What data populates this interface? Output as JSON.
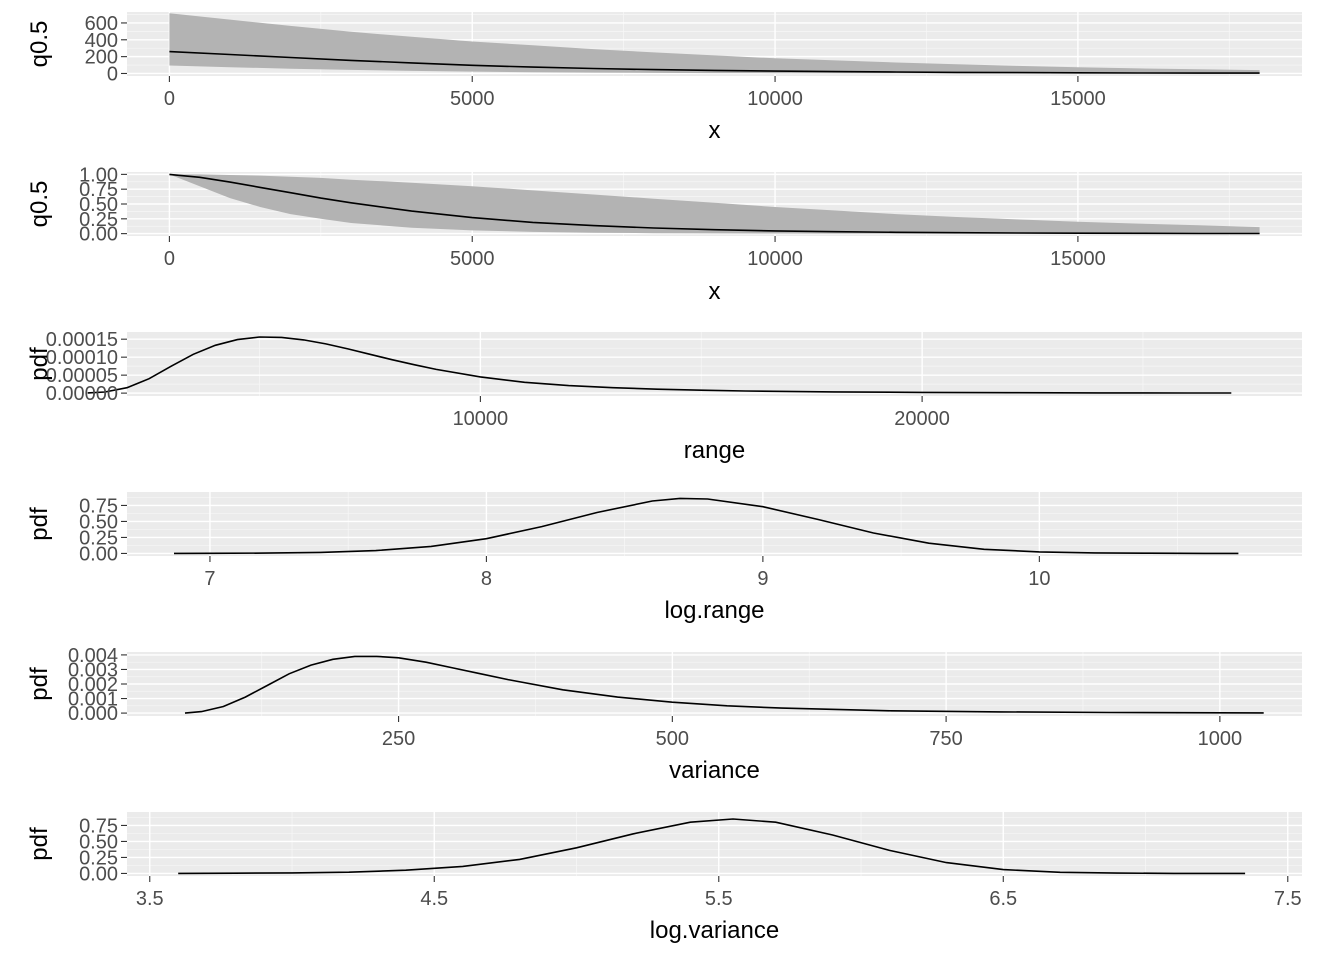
{
  "chart_data": [
    {
      "type": "area",
      "xlabel": "x",
      "ylabel": "q0.5",
      "xticks": [
        0,
        5000,
        10000,
        15000
      ],
      "xtick_labels": [
        "0",
        "5000",
        "10000",
        "15000"
      ],
      "yticks": [
        0,
        200,
        400,
        600
      ],
      "ytick_labels": [
        "0",
        "200",
        "400",
        "600"
      ],
      "xlim": [
        -700,
        18700
      ],
      "ylim": [
        -30,
        730
      ],
      "grid": true,
      "series": [
        {
          "x": [
            0,
            1000,
            2000,
            3000,
            4000,
            5000,
            6000,
            7000,
            8000,
            9000,
            10000,
            11000,
            12000,
            13000,
            14000,
            15000,
            16000,
            17000,
            18000
          ],
          "median": [
            260,
            225,
            190,
            155,
            125,
            97,
            76,
            59,
            46,
            36,
            28,
            22,
            17,
            13,
            10,
            8,
            6,
            5,
            4
          ],
          "lower": [
            95,
            75,
            57,
            42,
            30,
            22,
            15,
            10,
            7,
            5,
            3,
            2,
            2,
            1,
            1,
            1,
            0,
            0,
            0
          ],
          "upper": [
            715,
            640,
            565,
            495,
            435,
            380,
            335,
            290,
            250,
            215,
            180,
            155,
            130,
            110,
            90,
            75,
            60,
            50,
            40
          ]
        }
      ]
    },
    {
      "type": "area",
      "xlabel": "x",
      "ylabel": "q0.5",
      "xticks": [
        0,
        5000,
        10000,
        15000
      ],
      "xtick_labels": [
        "0",
        "5000",
        "10000",
        "15000"
      ],
      "yticks": [
        0,
        0.25,
        0.5,
        0.75,
        1
      ],
      "ytick_labels": [
        "0.00",
        "0.25",
        "0.50",
        "0.75",
        "1.00"
      ],
      "xlim": [
        -700,
        18700
      ],
      "ylim": [
        -0.04,
        1.04
      ],
      "grid": true,
      "series": [
        {
          "x": [
            0,
            500,
            1000,
            1500,
            2000,
            2500,
            3000,
            4000,
            5000,
            6000,
            7000,
            8000,
            9000,
            10000,
            11000,
            12000,
            13000,
            14000,
            15000,
            16000,
            17000,
            18000
          ],
          "median": [
            1.0,
            0.95,
            0.87,
            0.78,
            0.69,
            0.6,
            0.52,
            0.38,
            0.27,
            0.19,
            0.135,
            0.095,
            0.066,
            0.046,
            0.032,
            0.022,
            0.015,
            0.01,
            0.007,
            0.005,
            0.003,
            0.002
          ],
          "lower": [
            1.0,
            0.8,
            0.6,
            0.45,
            0.33,
            0.25,
            0.18,
            0.1,
            0.055,
            0.03,
            0.016,
            0.008,
            0.004,
            0.002,
            0.001,
            0.0005,
            0.0002,
            0.0001,
            0,
            0,
            0,
            0
          ],
          "upper": [
            1.0,
            1.0,
            0.99,
            0.98,
            0.96,
            0.94,
            0.91,
            0.86,
            0.8,
            0.73,
            0.66,
            0.59,
            0.52,
            0.45,
            0.39,
            0.33,
            0.28,
            0.24,
            0.2,
            0.17,
            0.14,
            0.11
          ]
        }
      ]
    },
    {
      "type": "line",
      "xlabel": "range",
      "ylabel": "pdf",
      "xticks": [
        10000,
        20000
      ],
      "xtick_labels": [
        "10000",
        "20000"
      ],
      "yticks": [
        0,
        5e-05,
        0.0001,
        0.00015
      ],
      "ytick_labels": [
        "0.00000",
        "0.00005",
        "0.00010",
        "0.00015"
      ],
      "xlim": [
        2000,
        28600
      ],
      "ylim": [
        -8e-06,
        0.00017
      ],
      "grid": true,
      "series": [
        {
          "x": [
            1110,
            1500,
            2000,
            2500,
            3000,
            3500,
            4000,
            4500,
            5000,
            5500,
            6000,
            6500,
            7000,
            7500,
            8000,
            8500,
            9000,
            10000,
            11000,
            12000,
            13000,
            14000,
            15000,
            16000,
            18000,
            20000,
            22000,
            24000,
            26000,
            27000
          ],
          "y": [
            5e-07,
            3e-06,
            1.5e-05,
            4e-05,
            7.5e-05,
            0.000108,
            0.000133,
            0.000149,
            0.000156,
            0.000155,
            0.000148,
            0.000137,
            0.000123,
            0.000108,
            9.3e-05,
            7.9e-05,
            6.6e-05,
            4.5e-05,
            3e-05,
            2.1e-05,
            1.5e-05,
            1.1e-05,
            8e-06,
            6e-06,
            3.5e-06,
            2e-06,
            1.2e-06,
            7e-07,
            4e-07,
            3e-07
          ]
        }
      ]
    },
    {
      "type": "line",
      "xlabel": "log.range",
      "ylabel": "pdf",
      "xticks": [
        7,
        8,
        9,
        10
      ],
      "xtick_labels": [
        "7",
        "8",
        "9",
        "10"
      ],
      "yticks": [
        0,
        0.25,
        0.5,
        0.75
      ],
      "ytick_labels": [
        "0.00",
        "0.25",
        "0.50",
        "0.75"
      ],
      "xlim": [
        6.7,
        10.95
      ],
      "ylim": [
        -0.04,
        0.96
      ],
      "grid": true,
      "series": [
        {
          "x": [
            6.87,
            7.0,
            7.2,
            7.4,
            7.6,
            7.8,
            8.0,
            8.2,
            8.4,
            8.6,
            8.7,
            8.8,
            9.0,
            9.2,
            9.4,
            9.6,
            9.8,
            10.0,
            10.2,
            10.4,
            10.6,
            10.72
          ],
          "y": [
            0.0,
            0.002,
            0.006,
            0.017,
            0.045,
            0.11,
            0.23,
            0.42,
            0.64,
            0.82,
            0.86,
            0.85,
            0.73,
            0.53,
            0.32,
            0.16,
            0.065,
            0.024,
            0.008,
            0.003,
            0.001,
            0.0005
          ]
        }
      ]
    },
    {
      "type": "line",
      "xlabel": "variance",
      "ylabel": "pdf",
      "xticks": [
        250,
        500,
        750,
        1000
      ],
      "xtick_labels": [
        "250",
        "500",
        "750",
        "1000"
      ],
      "yticks": [
        0,
        0.001,
        0.002,
        0.003,
        0.004
      ],
      "ytick_labels": [
        "0.000",
        "0.001",
        "0.002",
        "0.003",
        "0.004"
      ],
      "xlim": [
        2,
        1075
      ],
      "ylim": [
        -0.0002,
        0.0042
      ],
      "grid": true,
      "series": [
        {
          "x": [
            55,
            70,
            90,
            110,
            130,
            150,
            170,
            190,
            210,
            230,
            250,
            275,
            300,
            325,
            350,
            400,
            450,
            500,
            550,
            600,
            700,
            800,
            900,
            1000,
            1040
          ],
          "y": [
            0.0,
            0.0001,
            0.00045,
            0.0011,
            0.0019,
            0.0027,
            0.0033,
            0.0037,
            0.0039,
            0.0039,
            0.0038,
            0.0035,
            0.0031,
            0.0027,
            0.0023,
            0.0016,
            0.0011,
            0.00075,
            0.0005,
            0.00034,
            0.00016,
            8e-05,
            4e-05,
            2e-05,
            1e-05
          ]
        }
      ]
    },
    {
      "type": "line",
      "xlabel": "log.variance",
      "ylabel": "pdf",
      "xticks": [
        3.5,
        4.5,
        5.5,
        6.5,
        7.5
      ],
      "xtick_labels": [
        "3.5",
        "4.5",
        "5.5",
        "6.5",
        "7.5"
      ],
      "yticks": [
        0,
        0.25,
        0.5,
        0.75
      ],
      "ytick_labels": [
        "0.00",
        "0.25",
        "0.50",
        "0.75"
      ],
      "xlim": [
        3.42,
        7.55
      ],
      "ylim": [
        -0.04,
        0.96
      ],
      "grid": true,
      "series": [
        {
          "x": [
            3.6,
            3.8,
            4.0,
            4.2,
            4.4,
            4.6,
            4.8,
            5.0,
            5.2,
            5.4,
            5.55,
            5.7,
            5.9,
            6.1,
            6.3,
            6.5,
            6.7,
            6.9,
            7.1,
            7.35
          ],
          "y": [
            0.001,
            0.003,
            0.008,
            0.02,
            0.05,
            0.11,
            0.22,
            0.4,
            0.62,
            0.8,
            0.85,
            0.8,
            0.6,
            0.36,
            0.17,
            0.06,
            0.018,
            0.005,
            0.0012,
            0.0002
          ]
        }
      ]
    }
  ]
}
